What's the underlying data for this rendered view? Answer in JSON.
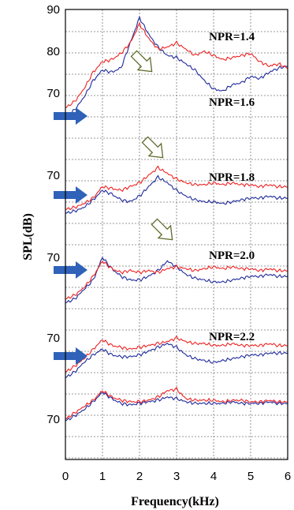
{
  "chart_data": {
    "type": "line",
    "xlabel": "Frequency(kHz)",
    "ylabel": "SPL(dB)",
    "xlim": [
      0,
      6
    ],
    "x_ticks": [
      "0",
      "1",
      "2",
      "3",
      "4",
      "5",
      "6"
    ],
    "grid": true,
    "colors": {
      "red": "#ee2222",
      "blue": "#1f2a9c",
      "arrow": "#2f62b8",
      "hollow_arrow": "#5f6b2a"
    },
    "panels": [
      {
        "label": "NPR=1.4",
        "y_ticks": [
          "90",
          "80",
          "70"
        ],
        "y_tick_values": [
          90,
          80,
          70
        ],
        "red": {
          "x": [
            0,
            0.25,
            0.5,
            0.75,
            1,
            1.25,
            1.5,
            1.75,
            2,
            2.25,
            2.5,
            2.75,
            3,
            3.25,
            3.5,
            3.75,
            4,
            4.25,
            4.5,
            4.75,
            5,
            5.25,
            5.5,
            5.75,
            6
          ],
          "y": [
            66.5,
            68,
            71,
            75,
            77.5,
            78,
            79.5,
            82,
            86.5,
            83,
            80.5,
            81,
            82,
            80.5,
            79,
            80,
            79,
            78,
            78.5,
            79,
            79.5,
            77.5,
            76.5,
            77,
            76
          ]
        },
        "blue": {
          "x": [
            0,
            0.25,
            0.5,
            0.75,
            1,
            1.25,
            1.5,
            1.75,
            2,
            2.25,
            2.5,
            2.75,
            3,
            3.25,
            3.5,
            3.75,
            4,
            4.25,
            4.5,
            4.75,
            5,
            5.25,
            5.5,
            5.75,
            6
          ],
          "y": [
            64,
            66,
            69,
            73,
            75.5,
            75,
            76,
            82,
            88,
            84,
            81,
            79,
            78.5,
            77,
            75.5,
            73,
            71,
            70.5,
            72,
            72.5,
            74,
            73.5,
            75,
            76,
            76.5
          ]
        }
      },
      {
        "label": "NPR=1.6",
        "y_ticks": [
          "70"
        ],
        "y_tick_values": [
          70
        ],
        "red": {
          "x": [
            0,
            0.25,
            0.5,
            0.75,
            1,
            1.25,
            1.5,
            1.75,
            2,
            2.25,
            2.5,
            2.75,
            3,
            3.25,
            3.5,
            3.75,
            4,
            4.25,
            4.5,
            4.75,
            5,
            5.25,
            5.5,
            5.75,
            6
          ],
          "y": [
            61,
            61.5,
            62.5,
            64,
            67,
            66.5,
            66,
            67,
            68,
            70,
            72,
            70.5,
            69,
            68,
            67.5,
            67.5,
            68,
            67.5,
            68,
            67.5,
            67.5,
            67,
            67.5,
            67,
            67
          ]
        },
        "blue": {
          "x": [
            0,
            0.25,
            0.5,
            0.75,
            1,
            1.25,
            1.5,
            1.75,
            2,
            2.25,
            2.5,
            2.75,
            3,
            3.25,
            3.5,
            3.75,
            4,
            4.25,
            4.5,
            4.75,
            5,
            5.25,
            5.5,
            5.75,
            6
          ],
          "y": [
            60,
            60.5,
            61.5,
            63.5,
            66,
            65,
            63.5,
            63,
            64.5,
            67,
            69.5,
            68,
            66,
            64.5,
            63.5,
            63,
            63,
            62.5,
            63,
            63.5,
            64,
            64,
            64.5,
            64,
            64
          ]
        }
      },
      {
        "label": "NPR=1.8",
        "y_ticks": [
          "70"
        ],
        "y_tick_values": [
          70
        ],
        "red": {
          "x": [
            0,
            0.25,
            0.5,
            0.75,
            1,
            1.25,
            1.5,
            1.75,
            2,
            2.25,
            2.5,
            2.75,
            3,
            3.25,
            3.5,
            3.75,
            4,
            4.25,
            4.5,
            4.75,
            5,
            5.25,
            5.5,
            5.75,
            6
          ],
          "y": [
            59,
            60,
            62,
            65,
            69,
            67,
            66,
            66.5,
            66,
            66.5,
            66,
            67,
            67.5,
            67,
            66.5,
            67,
            67.5,
            67,
            67.5,
            67,
            67,
            66.5,
            67,
            66.5,
            66.5
          ]
        },
        "blue": {
          "x": [
            0,
            0.25,
            0.5,
            0.75,
            1,
            1.25,
            1.5,
            1.75,
            2,
            2.25,
            2.5,
            2.75,
            3,
            3.25,
            3.5,
            3.75,
            4,
            4.25,
            4.5,
            4.75,
            5,
            5.25,
            5.5,
            5.75,
            6
          ],
          "y": [
            58,
            59,
            61.5,
            64,
            70,
            67,
            65,
            64,
            64,
            65,
            66.5,
            69,
            67.5,
            65.5,
            64.5,
            64,
            63.5,
            63.5,
            64,
            64.5,
            65,
            65,
            65.5,
            65,
            65
          ]
        }
      },
      {
        "label": "NPR=2.0",
        "y_ticks": [
          "70"
        ],
        "y_tick_values": [
          70
        ],
        "red": {
          "x": [
            0,
            0.25,
            0.5,
            0.75,
            1,
            1.25,
            1.5,
            1.75,
            2,
            2.25,
            2.5,
            2.75,
            3,
            3.25,
            3.5,
            3.75,
            4,
            4.25,
            4.5,
            4.75,
            5,
            5.25,
            5.5,
            5.75,
            6
          ],
          "y": [
            61,
            62.5,
            64.5,
            67,
            69.5,
            68,
            67.5,
            67,
            67.5,
            68,
            68.5,
            69,
            70,
            69,
            68.5,
            68.5,
            68,
            68,
            68.5,
            68,
            68,
            68,
            68.5,
            68,
            68
          ]
        },
        "blue": {
          "x": [
            0,
            0.25,
            0.5,
            0.75,
            1,
            1.25,
            1.5,
            1.75,
            2,
            2.25,
            2.5,
            2.75,
            3,
            3.25,
            3.5,
            3.75,
            4,
            4.25,
            4.5,
            4.75,
            5,
            5.25,
            5.5,
            5.75,
            6
          ],
          "y": [
            59.5,
            61,
            63.5,
            65.5,
            67,
            65.5,
            65,
            65,
            65.5,
            66.5,
            67.5,
            68.5,
            67.5,
            65.5,
            64.5,
            64,
            63.5,
            64,
            64.5,
            65,
            65.5,
            65.5,
            66,
            66,
            66
          ]
        }
      },
      {
        "label": "NPR=2.2",
        "y_ticks": [
          "70"
        ],
        "y_tick_values": [
          70
        ],
        "red": {
          "x": [
            0,
            0.25,
            0.5,
            0.75,
            1,
            1.25,
            1.5,
            1.75,
            2,
            2.25,
            2.5,
            2.75,
            3,
            3.25,
            3.5,
            3.75,
            4,
            4.25,
            4.5,
            4.75,
            5,
            5.25,
            5.5,
            5.75,
            6
          ],
          "y": [
            70,
            72,
            74,
            76,
            79,
            77,
            76,
            75.5,
            75.5,
            76,
            77,
            79,
            79.5,
            76.5,
            76,
            76,
            76,
            75.5,
            76,
            76,
            75.5,
            75.5,
            76,
            75.5,
            75.5
          ]
        },
        "blue": {
          "x": [
            0,
            0.25,
            0.5,
            0.75,
            1,
            1.25,
            1.5,
            1.75,
            2,
            2.25,
            2.5,
            2.75,
            3,
            3.25,
            3.5,
            3.75,
            4,
            4.25,
            4.5,
            4.75,
            5,
            5.25,
            5.5,
            5.75,
            6
          ],
          "y": [
            69.5,
            71,
            73,
            75.5,
            78.5,
            76.5,
            75,
            74.5,
            75,
            75.5,
            76,
            77,
            76.5,
            75.5,
            75,
            75,
            75,
            75,
            75.5,
            75,
            75,
            75,
            75.5,
            75,
            75
          ]
        }
      }
    ]
  }
}
